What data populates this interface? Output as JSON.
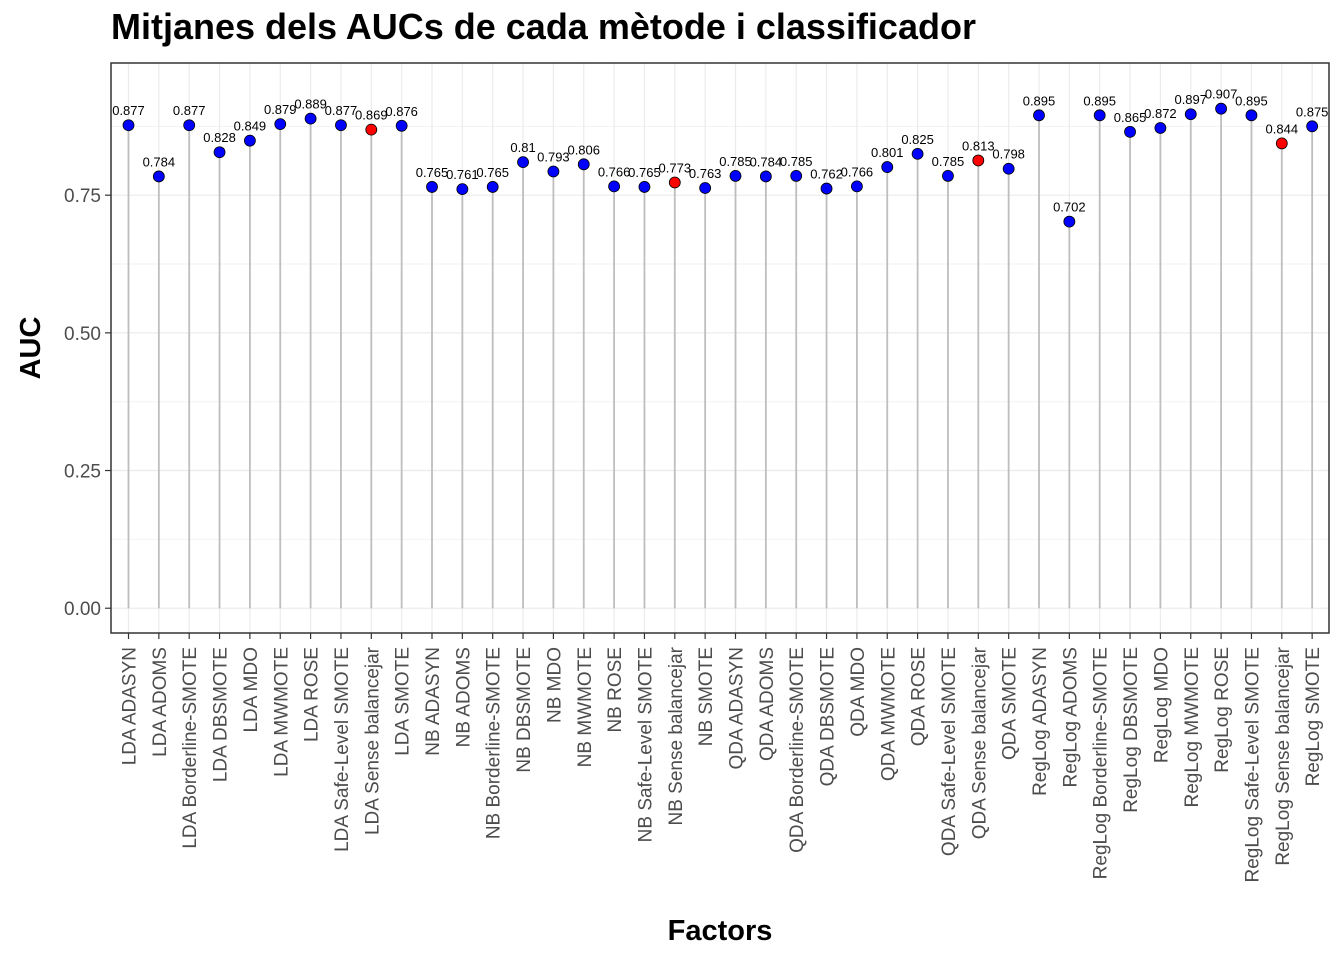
{
  "chart_data": {
    "type": "scatter",
    "title": "Mitjanes dels AUCs de cada mètode i classificador",
    "xlabel": "Factors",
    "ylabel": "AUC",
    "ylim": [
      -0.045,
      0.99
    ],
    "yticks": [
      "0.00",
      "0.25",
      "0.50",
      "0.75"
    ],
    "grid": true,
    "legend": "none",
    "colors": {
      "default": "#0000ff",
      "highlight": "#ff0000",
      "stem": "#bebebe"
    },
    "categories": [
      "LDA ADASYN",
      "LDA ADOMS",
      "LDA Borderline-SMOTE",
      "LDA DBSMOTE",
      "LDA MDO",
      "LDA MWMOTE",
      "LDA ROSE",
      "LDA Safe-Level SMOTE",
      "LDA Sense balancejar",
      "LDA SMOTE",
      "NB ADASYN",
      "NB ADOMS",
      "NB Borderline-SMOTE",
      "NB DBSMOTE",
      "NB MDO",
      "NB MWMOTE",
      "NB ROSE",
      "NB Safe-Level SMOTE",
      "NB Sense balancejar",
      "NB SMOTE",
      "QDA ADASYN",
      "QDA ADOMS",
      "QDA Borderline-SMOTE",
      "QDA DBSMOTE",
      "QDA MDO",
      "QDA MWMOTE",
      "QDA ROSE",
      "QDA Safe-Level SMOTE",
      "QDA Sense balancejar",
      "QDA SMOTE",
      "RegLog ADASYN",
      "RegLog ADOMS",
      "RegLog Borderline-SMOTE",
      "RegLog DBSMOTE",
      "RegLog MDO",
      "RegLog MWMOTE",
      "RegLog ROSE",
      "RegLog Safe-Level SMOTE",
      "RegLog Sense balancejar",
      "RegLog SMOTE"
    ],
    "values": [
      0.877,
      0.784,
      0.877,
      0.828,
      0.849,
      0.879,
      0.889,
      0.877,
      0.869,
      0.876,
      0.765,
      0.761,
      0.765,
      0.81,
      0.793,
      0.806,
      0.766,
      0.765,
      0.773,
      0.763,
      0.785,
      0.784,
      0.785,
      0.762,
      0.766,
      0.801,
      0.825,
      0.785,
      0.813,
      0.798,
      0.895,
      0.702,
      0.895,
      0.865,
      0.872,
      0.897,
      0.907,
      0.895,
      0.844,
      0.875
    ],
    "labels": [
      "0.877",
      "0.784",
      "0.877",
      "0.828",
      "0.849",
      "0.879",
      "0.889",
      "0.877",
      "0.869",
      "0.876",
      "0.765",
      "0.761",
      "0.765",
      "0.81",
      "0.793",
      "0.806",
      "0.766",
      "0.765",
      "0.773",
      "0.763",
      "0.785",
      "0.784",
      "0.785",
      "0.762",
      "0.766",
      "0.801",
      "0.825",
      "0.785",
      "0.813",
      "0.798",
      "0.895",
      "0.702",
      "0.895",
      "0.865",
      "0.872",
      "0.897",
      "0.907",
      "0.895",
      "0.844",
      "0.875"
    ],
    "highlight": [
      false,
      false,
      false,
      false,
      false,
      false,
      false,
      false,
      true,
      false,
      false,
      false,
      false,
      false,
      false,
      false,
      false,
      false,
      true,
      false,
      false,
      false,
      false,
      false,
      false,
      false,
      false,
      false,
      true,
      false,
      false,
      false,
      false,
      false,
      false,
      false,
      false,
      false,
      true,
      false
    ]
  }
}
